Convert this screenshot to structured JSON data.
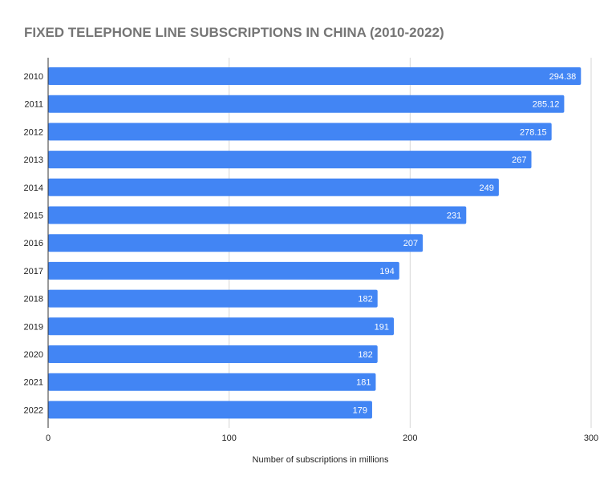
{
  "chart_data": {
    "type": "bar",
    "orientation": "horizontal",
    "title": "FIXED TELEPHONE LINE SUBSCRIPTIONS IN CHINA (2010-2022)",
    "xlabel": "Number of subscriptions in millions",
    "ylabel": "",
    "categories": [
      "2010",
      "2011",
      "2012",
      "2013",
      "2014",
      "2015",
      "2016",
      "2017",
      "2018",
      "2019",
      "2020",
      "2021",
      "2022"
    ],
    "values": [
      294.38,
      285.12,
      278.15,
      267,
      249,
      231,
      207,
      194,
      182,
      191,
      182,
      181,
      179
    ],
    "value_labels": [
      "294.38",
      "285.12",
      "278.15",
      "267",
      "249",
      "231",
      "207",
      "194",
      "182",
      "191",
      "182",
      "181",
      "179"
    ],
    "xlim": [
      0,
      300
    ],
    "xticks": [
      0,
      100,
      200,
      300
    ],
    "grid": true,
    "legend": "none",
    "bar_color": "#4285f4"
  }
}
